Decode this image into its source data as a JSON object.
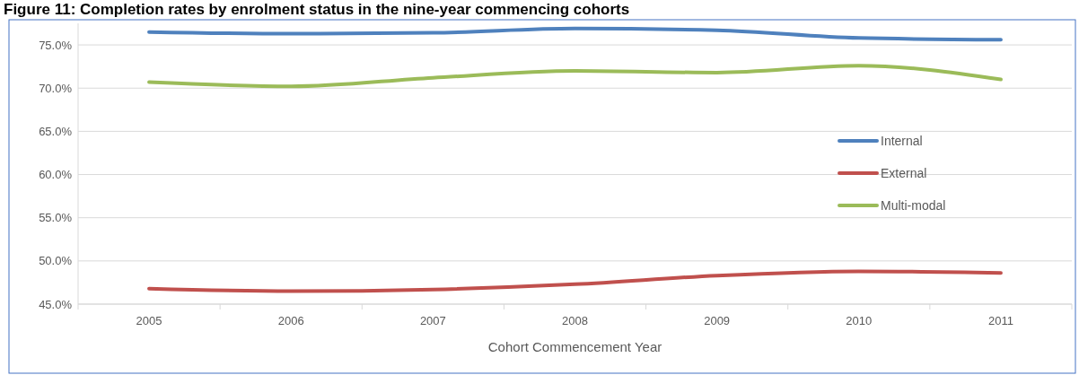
{
  "chart_data": {
    "type": "line",
    "title": "Figure 11: Completion rates by enrolment status in the nine-year commencing cohorts",
    "xlabel": "Cohort Commencement Year",
    "categories": [
      "2005",
      "2006",
      "2007",
      "2008",
      "2009",
      "2010",
      "2011"
    ],
    "series": [
      {
        "name": "Internal",
        "color": "#4f81bd",
        "values": [
          76.5,
          76.3,
          76.4,
          76.9,
          76.7,
          75.8,
          75.6
        ]
      },
      {
        "name": "External",
        "color": "#c0504d",
        "values": [
          46.8,
          46.5,
          46.7,
          47.3,
          48.3,
          48.8,
          48.6
        ]
      },
      {
        "name": "Multi-modal",
        "color": "#9bbb59",
        "values": [
          70.7,
          70.2,
          71.2,
          72.0,
          71.8,
          72.6,
          71.0
        ]
      }
    ],
    "ylim": [
      45,
      77.5
    ],
    "yticks": [
      {
        "value": 45,
        "label": "45.0%"
      },
      {
        "value": 50,
        "label": "50.0%"
      },
      {
        "value": 55,
        "label": "55.0%"
      },
      {
        "value": 60,
        "label": "60.0%"
      },
      {
        "value": 65,
        "label": "65.0%"
      },
      {
        "value": 70,
        "label": "70.0%"
      },
      {
        "value": 75,
        "label": "75.0%"
      }
    ],
    "grid": "y",
    "legend": "right",
    "marker": "none",
    "line_style": "solid"
  }
}
